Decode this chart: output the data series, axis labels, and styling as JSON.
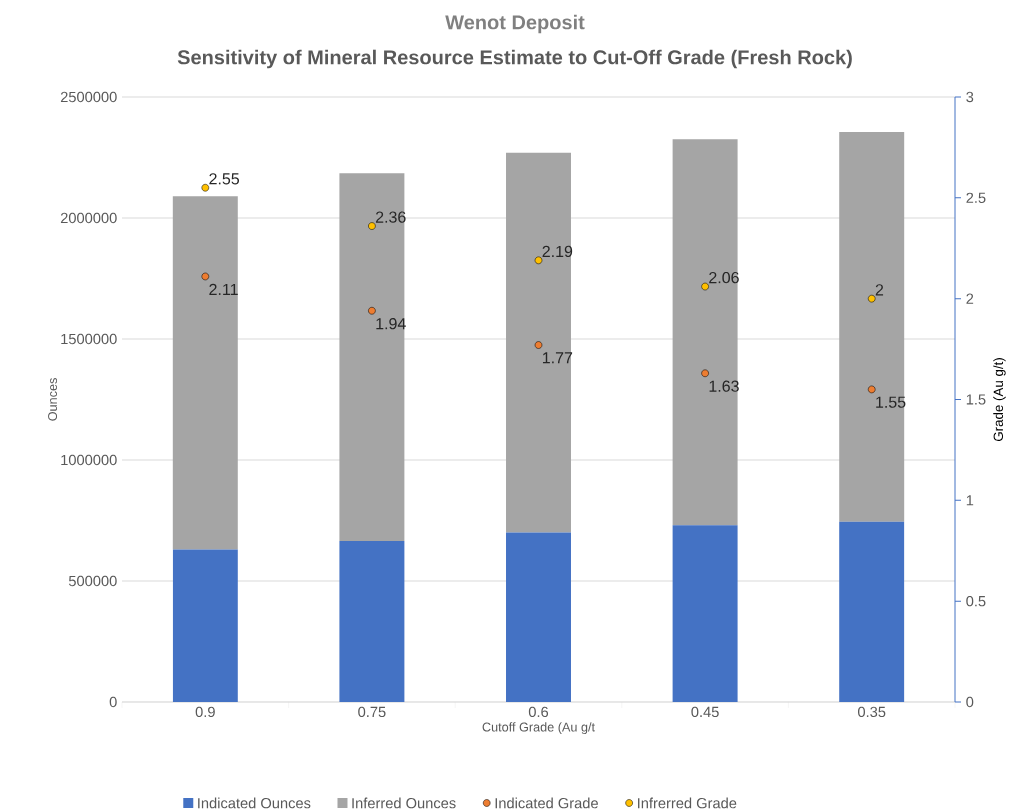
{
  "chart_data": {
    "type": "bar",
    "title": "Wenot Deposit",
    "subtitle": "Sensitivity of Mineral Resource Estimate to Cut-Off Grade (Fresh Rock)",
    "xlabel": "Cutoff Grade (Au g/t",
    "ylabel": "Ounces",
    "y2label": "Grade (Au g/t)",
    "categories": [
      "0.9",
      "0.75",
      "0.6",
      "0.45",
      "0.35"
    ],
    "stacked": true,
    "series": [
      {
        "name": "Indicated Ounces",
        "color": "#4472c4",
        "values": [
          630000,
          665000,
          700000,
          730000,
          745000
        ]
      },
      {
        "name": "Inferred Ounces",
        "color": "#a5a5a5",
        "values": [
          1460000,
          1520000,
          1570000,
          1595000,
          1610000
        ]
      },
      {
        "name": "Indicated Grade",
        "type": "scatter",
        "axis": "y2",
        "color": "#ed7d31",
        "x": [
          "0.9",
          "0.75",
          "0.6",
          "0.45",
          "0.35"
        ],
        "values": [
          2.11,
          1.94,
          1.77,
          1.63,
          1.55
        ],
        "value_labels": [
          "2.11",
          "1.94",
          "1.77",
          "1.63",
          "1.55"
        ]
      },
      {
        "name": "Infrerred Grade",
        "type": "scatter",
        "axis": "y2",
        "color": "#ffc000",
        "x": [
          "0.9",
          "0.75",
          "0.6",
          "0.45",
          "0.35"
        ],
        "values": [
          2.55,
          2.36,
          2.19,
          2.06,
          2
        ],
        "value_labels": [
          "2.55",
          "2.36",
          "2.19",
          "2.06",
          "2"
        ]
      }
    ],
    "ylim": [
      0,
      2500000
    ],
    "yticks": [
      0,
      500000,
      1000000,
      1500000,
      2000000,
      2500000
    ],
    "y2lim": [
      0,
      3
    ],
    "y2ticks": [
      0,
      0.5,
      1,
      1.5,
      2,
      2.5,
      3
    ],
    "grid": "y",
    "legend": "bottom",
    "marker": "circle"
  }
}
